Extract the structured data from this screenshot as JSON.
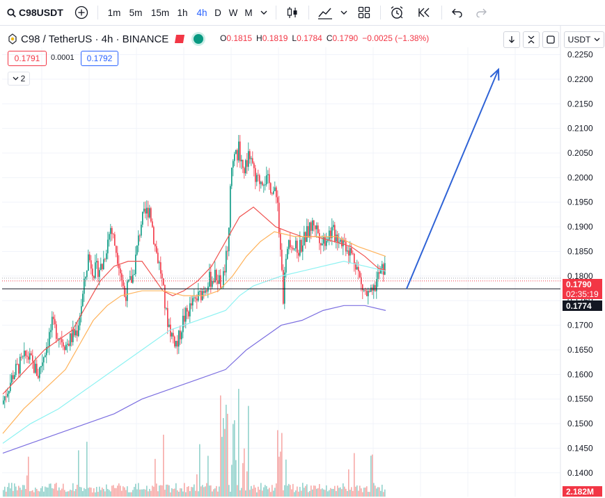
{
  "toolbar": {
    "symbol": "C98USDT",
    "intervals": [
      "1m",
      "5m",
      "15m",
      "1h",
      "4h",
      "D",
      "W",
      "M"
    ],
    "active_interval": "4h"
  },
  "legend": {
    "title": "C98 / TetherUS · 4h · BINANCE",
    "ohlc": [
      {
        "label": "O",
        "value": "0.1815"
      },
      {
        "label": "H",
        "value": "0.1819"
      },
      {
        "label": "L",
        "value": "0.1784"
      },
      {
        "label": "C",
        "value": "0.1790"
      }
    ],
    "change": "−0.0025 (−1.38%)",
    "bid": "0.1791",
    "spread": "0.0001",
    "ask": "0.1792",
    "indicator_count": "2"
  },
  "currency": "USDT",
  "price_labels": {
    "last": "0.1790",
    "countdown": "02:35:19",
    "line": "0.1774",
    "volume": "2.182M"
  },
  "colors": {
    "up": "#089981",
    "down": "#f23645",
    "up_vol": "#92d2cc",
    "down_vol": "#f7a9a7",
    "ma_red": "#f05350",
    "ma_orange": "#ffb259",
    "ma_cyan": "#8cf2f2",
    "ma_purple": "#7b6ee0",
    "arrow": "#2f63d6"
  },
  "chart_data": {
    "type": "candlestick",
    "y_axis_ticks": [
      "0.2250",
      "0.2200",
      "0.2150",
      "0.2100",
      "0.2050",
      "0.2000",
      "0.1950",
      "0.1900",
      "0.1850",
      "0.1800",
      "0.1750",
      "0.1700",
      "0.1650",
      "0.1600",
      "0.1550",
      "0.1500",
      "0.1450",
      "0.1400"
    ],
    "ylim": [
      0.1387,
      0.2255
    ],
    "horizontal_line": 0.1774,
    "last_price": 0.179,
    "moving_averages": [
      {
        "color": "ma_red",
        "points": [
          [
            0,
            0.156
          ],
          [
            10,
            0.159
          ],
          [
            20,
            0.162
          ],
          [
            30,
            0.165
          ],
          [
            40,
            0.167
          ],
          [
            50,
            0.169
          ],
          [
            60,
            0.174
          ],
          [
            70,
            0.179
          ],
          [
            80,
            0.182
          ],
          [
            90,
            0.183
          ],
          [
            100,
            0.183
          ],
          [
            110,
            0.179
          ],
          [
            115,
            0.177
          ],
          [
            122,
            0.176
          ],
          [
            130,
            0.177
          ],
          [
            140,
            0.179
          ],
          [
            150,
            0.182
          ],
          [
            160,
            0.187
          ],
          [
            170,
            0.192
          ],
          [
            180,
            0.194
          ],
          [
            188,
            0.192
          ],
          [
            196,
            0.19
          ],
          [
            205,
            0.189
          ],
          [
            215,
            0.188
          ],
          [
            225,
            0.188
          ],
          [
            238,
            0.187
          ],
          [
            250,
            0.186
          ],
          [
            260,
            0.184
          ],
          [
            270,
            0.1815
          ],
          [
            275,
            0.1812
          ]
        ]
      },
      {
        "color": "ma_orange",
        "points": [
          [
            0,
            0.148
          ],
          [
            15,
            0.153
          ],
          [
            30,
            0.157
          ],
          [
            45,
            0.161
          ],
          [
            55,
            0.166
          ],
          [
            65,
            0.171
          ],
          [
            75,
            0.174
          ],
          [
            85,
            0.176
          ],
          [
            100,
            0.177
          ],
          [
            115,
            0.177
          ],
          [
            130,
            0.176
          ],
          [
            145,
            0.176
          ],
          [
            155,
            0.177
          ],
          [
            165,
            0.18
          ],
          [
            175,
            0.184
          ],
          [
            185,
            0.187
          ],
          [
            195,
            0.189
          ],
          [
            210,
            0.188
          ],
          [
            225,
            0.188
          ],
          [
            240,
            0.188
          ],
          [
            255,
            0.186
          ],
          [
            265,
            0.185
          ],
          [
            275,
            0.184
          ]
        ]
      },
      {
        "color": "ma_cyan",
        "points": [
          [
            0,
            0.146
          ],
          [
            20,
            0.15
          ],
          [
            40,
            0.153
          ],
          [
            60,
            0.157
          ],
          [
            80,
            0.161
          ],
          [
            100,
            0.165
          ],
          [
            120,
            0.169
          ],
          [
            140,
            0.171
          ],
          [
            160,
            0.173
          ],
          [
            170,
            0.176
          ],
          [
            180,
            0.178
          ],
          [
            190,
            0.179
          ],
          [
            200,
            0.18
          ],
          [
            215,
            0.181
          ],
          [
            230,
            0.182
          ],
          [
            245,
            0.183
          ],
          [
            260,
            0.182
          ],
          [
            275,
            0.181
          ]
        ]
      },
      {
        "color": "ma_purple",
        "points": [
          [
            0,
            0.144
          ],
          [
            20,
            0.146
          ],
          [
            40,
            0.148
          ],
          [
            60,
            0.15
          ],
          [
            80,
            0.152
          ],
          [
            100,
            0.155
          ],
          [
            120,
            0.157
          ],
          [
            140,
            0.159
          ],
          [
            160,
            0.161
          ],
          [
            175,
            0.165
          ],
          [
            190,
            0.168
          ],
          [
            200,
            0.17
          ],
          [
            215,
            0.171
          ],
          [
            230,
            0.173
          ],
          [
            245,
            0.174
          ],
          [
            260,
            0.174
          ],
          [
            275,
            0.173
          ]
        ]
      }
    ],
    "trend_arrow": {
      "from": [
        0.1774,
        290
      ],
      "to": [
        0.222,
        356
      ]
    }
  }
}
